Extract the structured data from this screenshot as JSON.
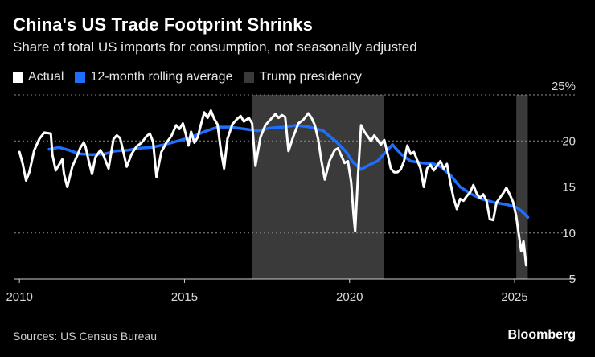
{
  "header": {
    "title": "China's US Trade Footprint Shrinks",
    "subtitle": "Share of total US imports for consumption, not seasonally adjusted"
  },
  "legend": {
    "actual": "Actual",
    "rolling": "12-month rolling average",
    "shading": "Trump presidency"
  },
  "footer": {
    "source": "Sources: US Census Bureau",
    "brand": "Bloomberg"
  },
  "colors": {
    "background": "#000000",
    "actual": "#ffffff",
    "rolling": "#1f6fff",
    "shading": "#3a3a3a",
    "grid": "#8a8a8a"
  },
  "chart_data": {
    "type": "line",
    "title": "China's US Trade Footprint Shrinks",
    "subtitle": "Share of total US imports for consumption, not seasonally adjusted",
    "xlabel": "",
    "ylabel": "",
    "xlim": [
      2009.85,
      2026.85
    ],
    "ylim": [
      5,
      25
    ],
    "x_ticks": [
      2010,
      2015,
      2020,
      2025
    ],
    "y_ticks": [
      5,
      10,
      15,
      20,
      25
    ],
    "y_tick_labels": [
      "5",
      "10",
      "15",
      "20",
      "25%"
    ],
    "grid": "horizontal dotted",
    "legend_position": "top-left",
    "shaded_periods": [
      {
        "label": "Trump presidency",
        "start": 2017.05,
        "end": 2021.05
      },
      {
        "label": "Trump presidency",
        "start": 2025.05,
        "end": 2025.4
      }
    ],
    "series": [
      {
        "name": "Actual",
        "color": "#ffffff",
        "points": [
          [
            2010.0,
            18.8
          ],
          [
            2010.1,
            17.5
          ],
          [
            2010.2,
            15.7
          ],
          [
            2010.3,
            16.6
          ],
          [
            2010.45,
            19.0
          ],
          [
            2010.6,
            20.2
          ],
          [
            2010.75,
            20.9
          ],
          [
            2010.95,
            20.8
          ],
          [
            2011.0,
            18.5
          ],
          [
            2011.1,
            16.8
          ],
          [
            2011.2,
            17.4
          ],
          [
            2011.3,
            18.0
          ],
          [
            2011.35,
            16.4
          ],
          [
            2011.45,
            15.0
          ],
          [
            2011.6,
            17.2
          ],
          [
            2011.75,
            18.4
          ],
          [
            2011.85,
            19.3
          ],
          [
            2011.95,
            19.8
          ],
          [
            2012.0,
            19.4
          ],
          [
            2012.1,
            17.8
          ],
          [
            2012.2,
            16.4
          ],
          [
            2012.3,
            18.2
          ],
          [
            2012.45,
            19.0
          ],
          [
            2012.55,
            18.4
          ],
          [
            2012.7,
            17.0
          ],
          [
            2012.85,
            20.2
          ],
          [
            2012.95,
            20.6
          ],
          [
            2013.05,
            20.3
          ],
          [
            2013.15,
            18.8
          ],
          [
            2013.25,
            17.2
          ],
          [
            2013.4,
            18.6
          ],
          [
            2013.55,
            19.4
          ],
          [
            2013.7,
            19.8
          ],
          [
            2013.85,
            20.5
          ],
          [
            2013.95,
            20.8
          ],
          [
            2014.05,
            19.9
          ],
          [
            2014.15,
            16.1
          ],
          [
            2014.3,
            18.8
          ],
          [
            2014.45,
            19.8
          ],
          [
            2014.6,
            20.5
          ],
          [
            2014.75,
            21.7
          ],
          [
            2014.85,
            21.3
          ],
          [
            2014.95,
            21.9
          ],
          [
            2015.05,
            20.6
          ],
          [
            2015.12,
            19.5
          ],
          [
            2015.2,
            21.0
          ],
          [
            2015.3,
            19.8
          ],
          [
            2015.4,
            20.4
          ],
          [
            2015.5,
            21.8
          ],
          [
            2015.6,
            23.1
          ],
          [
            2015.7,
            22.5
          ],
          [
            2015.8,
            23.3
          ],
          [
            2015.9,
            22.4
          ],
          [
            2016.0,
            21.8
          ],
          [
            2016.1,
            19.0
          ],
          [
            2016.2,
            17.0
          ],
          [
            2016.3,
            20.2
          ],
          [
            2016.45,
            21.8
          ],
          [
            2016.6,
            22.4
          ],
          [
            2016.7,
            22.7
          ],
          [
            2016.8,
            22.1
          ],
          [
            2016.95,
            22.5
          ],
          [
            2017.05,
            21.9
          ],
          [
            2017.15,
            17.3
          ],
          [
            2017.3,
            20.4
          ],
          [
            2017.45,
            21.7
          ],
          [
            2017.6,
            22.3
          ],
          [
            2017.75,
            22.9
          ],
          [
            2017.85,
            22.5
          ],
          [
            2017.95,
            22.8
          ],
          [
            2018.05,
            22.6
          ],
          [
            2018.15,
            18.9
          ],
          [
            2018.3,
            20.5
          ],
          [
            2018.45,
            21.9
          ],
          [
            2018.6,
            22.3
          ],
          [
            2018.75,
            23.0
          ],
          [
            2018.85,
            22.5
          ],
          [
            2018.95,
            21.7
          ],
          [
            2019.05,
            20.2
          ],
          [
            2019.15,
            17.8
          ],
          [
            2019.25,
            15.8
          ],
          [
            2019.4,
            17.9
          ],
          [
            2019.55,
            19.0
          ],
          [
            2019.65,
            19.2
          ],
          [
            2019.75,
            18.4
          ],
          [
            2019.85,
            17.6
          ],
          [
            2019.95,
            17.8
          ],
          [
            2020.05,
            15.5
          ],
          [
            2020.12,
            12.0
          ],
          [
            2020.17,
            10.2
          ],
          [
            2020.25,
            15.8
          ],
          [
            2020.35,
            21.7
          ],
          [
            2020.45,
            21.0
          ],
          [
            2020.55,
            20.5
          ],
          [
            2020.65,
            20.0
          ],
          [
            2020.75,
            20.6
          ],
          [
            2020.85,
            20.1
          ],
          [
            2020.95,
            19.6
          ],
          [
            2021.05,
            20.1
          ],
          [
            2021.15,
            18.6
          ],
          [
            2021.25,
            17.0
          ],
          [
            2021.35,
            16.6
          ],
          [
            2021.45,
            16.6
          ],
          [
            2021.55,
            16.9
          ],
          [
            2021.65,
            17.8
          ],
          [
            2021.75,
            19.5
          ],
          [
            2021.85,
            18.6
          ],
          [
            2021.95,
            18.8
          ],
          [
            2022.05,
            17.9
          ],
          [
            2022.15,
            17.0
          ],
          [
            2022.25,
            15.0
          ],
          [
            2022.35,
            17.0
          ],
          [
            2022.45,
            17.4
          ],
          [
            2022.55,
            16.8
          ],
          [
            2022.65,
            17.3
          ],
          [
            2022.75,
            17.8
          ],
          [
            2022.85,
            17.0
          ],
          [
            2022.95,
            17.5
          ],
          [
            2023.05,
            15.5
          ],
          [
            2023.15,
            13.8
          ],
          [
            2023.25,
            12.6
          ],
          [
            2023.35,
            13.7
          ],
          [
            2023.45,
            13.5
          ],
          [
            2023.55,
            14.0
          ],
          [
            2023.65,
            14.4
          ],
          [
            2023.75,
            15.2
          ],
          [
            2023.85,
            14.3
          ],
          [
            2023.95,
            13.8
          ],
          [
            2024.05,
            14.2
          ],
          [
            2024.15,
            13.5
          ],
          [
            2024.25,
            11.5
          ],
          [
            2024.35,
            11.4
          ],
          [
            2024.45,
            13.3
          ],
          [
            2024.55,
            13.8
          ],
          [
            2024.65,
            14.3
          ],
          [
            2024.75,
            14.9
          ],
          [
            2024.85,
            14.2
          ],
          [
            2024.95,
            13.4
          ],
          [
            2025.05,
            11.8
          ],
          [
            2025.12,
            10.0
          ],
          [
            2025.2,
            8.0
          ],
          [
            2025.27,
            9.1
          ],
          [
            2025.35,
            6.5
          ]
        ]
      },
      {
        "name": "12-month rolling average",
        "color": "#1f6fff",
        "points": [
          [
            2010.9,
            19.1
          ],
          [
            2011.2,
            19.3
          ],
          [
            2011.5,
            19.0
          ],
          [
            2011.8,
            18.6
          ],
          [
            2012.2,
            18.5
          ],
          [
            2012.6,
            18.6
          ],
          [
            2012.9,
            18.9
          ],
          [
            2013.3,
            19.0
          ],
          [
            2013.6,
            19.2
          ],
          [
            2014.0,
            19.3
          ],
          [
            2014.4,
            19.6
          ],
          [
            2014.8,
            20.0
          ],
          [
            2015.2,
            20.4
          ],
          [
            2015.6,
            21.0
          ],
          [
            2016.0,
            21.5
          ],
          [
            2016.4,
            21.5
          ],
          [
            2016.8,
            21.3
          ],
          [
            2017.2,
            21.1
          ],
          [
            2017.6,
            21.4
          ],
          [
            2018.0,
            21.5
          ],
          [
            2018.4,
            21.7
          ],
          [
            2018.8,
            21.5
          ],
          [
            2019.2,
            21.1
          ],
          [
            2019.6,
            19.9
          ],
          [
            2019.9,
            18.8
          ],
          [
            2020.1,
            17.7
          ],
          [
            2020.35,
            16.9
          ],
          [
            2020.6,
            17.4
          ],
          [
            2020.85,
            17.8
          ],
          [
            2021.2,
            19.2
          ],
          [
            2021.3,
            19.6
          ],
          [
            2021.55,
            18.6
          ],
          [
            2021.85,
            17.8
          ],
          [
            2022.2,
            17.6
          ],
          [
            2022.55,
            17.5
          ],
          [
            2022.75,
            17.2
          ],
          [
            2023.05,
            16.3
          ],
          [
            2023.35,
            15.0
          ],
          [
            2023.7,
            14.2
          ],
          [
            2024.0,
            13.7
          ],
          [
            2024.4,
            13.3
          ],
          [
            2024.75,
            13.1
          ],
          [
            2025.05,
            12.8
          ],
          [
            2025.2,
            12.4
          ],
          [
            2025.4,
            11.7
          ]
        ]
      }
    ]
  }
}
